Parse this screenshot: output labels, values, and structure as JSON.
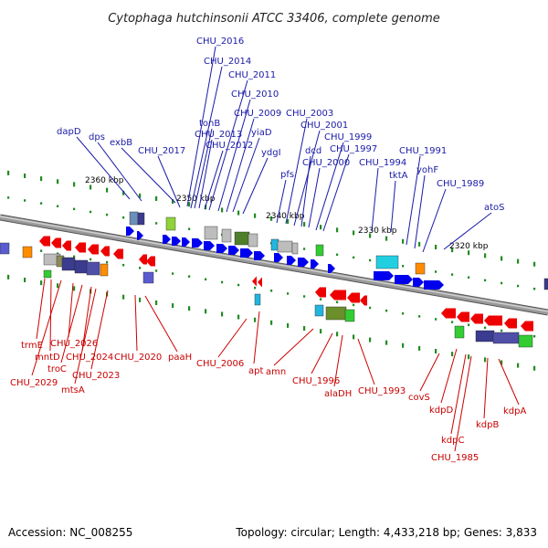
{
  "title": "Cytophaga hutchinsonii ATCC 33406, complete genome",
  "footer": {
    "accession": "Accession: NC_008255",
    "summary": "Topology: circular; Length: 4,433,218 bp; Genes: 3,833"
  },
  "colors": {
    "forward": "#0000ee",
    "reverse": "#ee0000",
    "leader_forward": "#1a1aa8",
    "leader_reverse": "#cc0000",
    "tick": "#228b22",
    "backbone": "#7a7a7a"
  },
  "scale": {
    "ticks": [
      "2360 kbp",
      "2350 kbp",
      "2340 kbp",
      "2330 kbp",
      "2320 kbp"
    ]
  },
  "genes_forward": [
    "dapD",
    "dps",
    "exbB",
    "CHU_2017",
    "CHU_2016",
    "CHU_2014",
    "tonB",
    "CHU_2013",
    "CHU_2012",
    "CHU_2011",
    "CHU_2010",
    "CHU_2009",
    "yiaD",
    "ydgI",
    "pfs",
    "CHU_2003",
    "CHU_2001",
    "dcd",
    "CHU_2000",
    "CHU_1999",
    "CHU_1997",
    "CHU_1994",
    "tktA",
    "CHU_1991",
    "yohF",
    "CHU_1989",
    "atoS"
  ],
  "genes_reverse": [
    "trmE",
    "mntD",
    "CHU_2029",
    "CHU_2026",
    "troC",
    "CHU_2024",
    "mtsA",
    "CHU_2023",
    "CHU_2020",
    "paaH",
    "CHU_2006",
    "apt",
    "amn",
    "CHU_1996",
    "alaDH",
    "CHU_1993",
    "covS",
    "kdpD",
    "kdpC",
    "CHU_1985",
    "kdpB",
    "kdpA"
  ]
}
